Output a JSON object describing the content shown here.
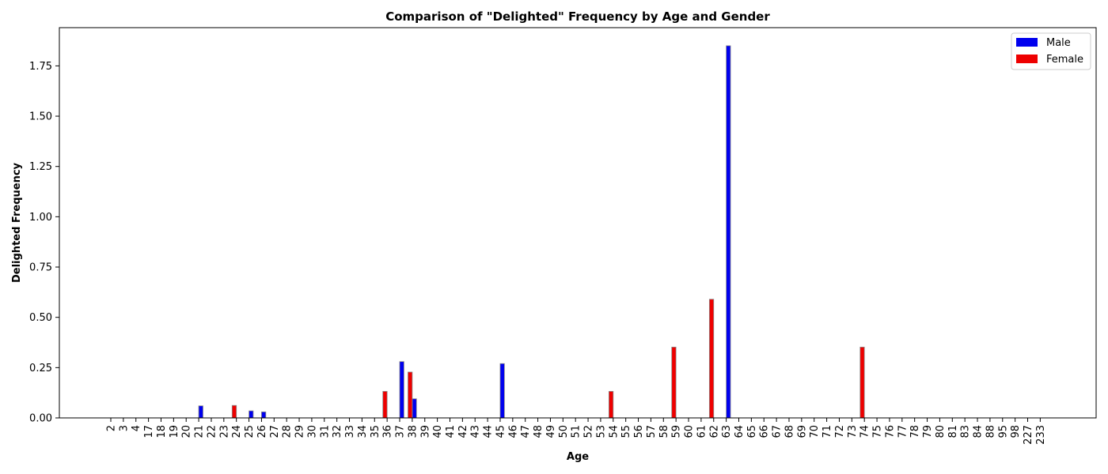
{
  "chart_data": {
    "type": "bar",
    "title": "Comparison of \"Delighted\" Frequency by Age and Gender",
    "xlabel": "Age",
    "ylabel": "Delighted Frequency",
    "ylim": [
      0,
      1.94
    ],
    "yticks": [
      "0.00",
      "0.25",
      "0.50",
      "0.75",
      "1.00",
      "1.25",
      "1.50",
      "1.75"
    ],
    "ytick_values": [
      0,
      0.25,
      0.5,
      0.75,
      1.0,
      1.25,
      1.5,
      1.75
    ],
    "categories": [
      "2",
      "3",
      "4",
      "17",
      "18",
      "19",
      "20",
      "21",
      "22",
      "23",
      "24",
      "25",
      "26",
      "27",
      "28",
      "29",
      "30",
      "31",
      "32",
      "33",
      "34",
      "35",
      "36",
      "37",
      "38",
      "39",
      "40",
      "41",
      "42",
      "43",
      "44",
      "45",
      "46",
      "47",
      "48",
      "49",
      "50",
      "51",
      "52",
      "53",
      "54",
      "55",
      "56",
      "57",
      "58",
      "59",
      "60",
      "61",
      "62",
      "63",
      "64",
      "65",
      "66",
      "67",
      "68",
      "69",
      "70",
      "71",
      "72",
      "73",
      "74",
      "75",
      "76",
      "77",
      "78",
      "79",
      "80",
      "81",
      "83",
      "84",
      "88",
      "95",
      "98",
      "227",
      "233"
    ],
    "series": [
      {
        "name": "Male",
        "color": "#0000ee",
        "values": [
          0,
          0,
          0,
          0,
          0,
          0,
          0,
          0.06,
          0,
          0,
          0,
          0.035,
          0.03,
          0,
          0,
          0,
          0,
          0,
          0,
          0,
          0,
          0,
          0,
          0.28,
          0.095,
          0,
          0,
          0,
          0,
          0,
          0,
          0.27,
          0,
          0,
          0,
          0,
          0,
          0,
          0,
          0,
          0,
          0,
          0,
          0,
          0,
          0,
          0,
          0,
          0,
          1.85,
          0,
          0,
          0,
          0,
          0,
          0,
          0,
          0,
          0,
          0,
          0,
          0,
          0,
          0,
          0,
          0,
          0,
          0,
          0,
          0,
          0,
          0,
          0,
          0,
          0
        ]
      },
      {
        "name": "Female",
        "color": "#ee0000",
        "values": [
          0,
          0,
          0,
          0,
          0,
          0,
          0,
          0,
          0,
          0,
          0.062,
          0,
          0,
          0,
          0,
          0,
          0,
          0,
          0,
          0,
          0,
          0,
          0.132,
          0,
          0.228,
          0,
          0,
          0,
          0,
          0,
          0,
          0,
          0,
          0,
          0,
          0,
          0,
          0,
          0,
          0,
          0.132,
          0,
          0,
          0,
          0,
          0.352,
          0,
          0,
          0.59,
          0,
          0,
          0,
          0,
          0,
          0,
          0,
          0,
          0,
          0,
          0,
          0.352,
          0,
          0,
          0,
          0,
          0,
          0,
          0,
          0,
          0,
          0,
          0,
          0,
          0,
          0
        ]
      }
    ],
    "legend_position": "top-right",
    "grid": false
  }
}
